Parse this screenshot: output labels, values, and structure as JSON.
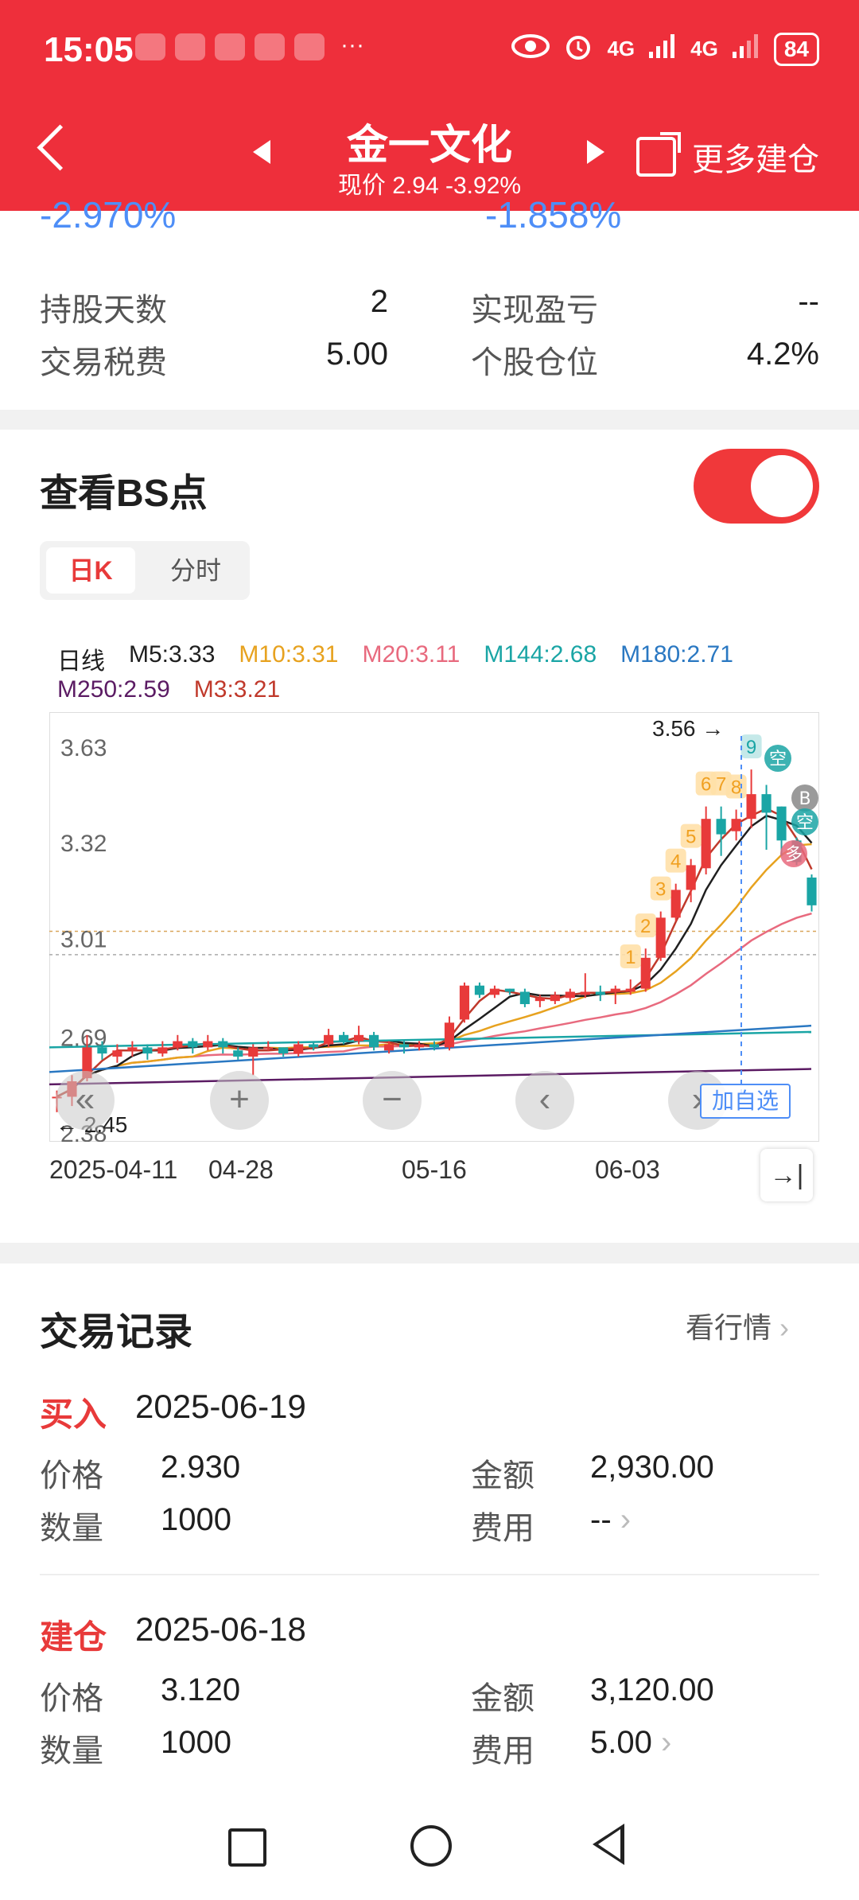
{
  "status_bar": {
    "time": "15:05",
    "battery": "84",
    "network1": "4G",
    "network2": "4G",
    "more": "···"
  },
  "header": {
    "title": "金一文化",
    "price_line": "现价 2.94 -3.92%",
    "more_label": "更多建仓"
  },
  "summary": {
    "cut_left": "-2.970%",
    "cut_right": "-1.858%",
    "rows": [
      {
        "l_label": "持股天数",
        "l_value": "2",
        "r_label": "实现盈亏",
        "r_value": "--"
      },
      {
        "l_label": "交易税费",
        "l_value": "5.00",
        "r_label": "个股仓位",
        "r_value": "4.2%"
      }
    ]
  },
  "bs": {
    "title": "查看BS点",
    "toggle_on": true,
    "tabs": [
      "日K",
      "分时"
    ],
    "selected_tab": "日K"
  },
  "chart_data": {
    "type": "candlestick",
    "period_label": "日线",
    "ma_legend": [
      {
        "text": "M5:3.33",
        "color": "#1f1f1f"
      },
      {
        "text": "M10:3.31",
        "color": "#e7a21f"
      },
      {
        "text": "M20:3.11",
        "color": "#e86a7e"
      },
      {
        "text": "M144:2.68",
        "color": "#1aa5a5"
      },
      {
        "text": "M180:2.71",
        "color": "#2a78c2"
      },
      {
        "text": "M250:2.59",
        "color": "#5b1b63"
      },
      {
        "text": "M3:3.21",
        "color": "#c0392b"
      }
    ],
    "y_ticks": [
      "3.63",
      "3.32",
      "3.01",
      "2.69",
      "2.38"
    ],
    "y_range": [
      2.38,
      3.72
    ],
    "x_labels": [
      "2025-04-11",
      "04-28",
      "05-16",
      "06-03"
    ],
    "high_label": "3.56",
    "low_label": "2.45",
    "nine_turn": [
      "1",
      "2",
      "3",
      "4",
      "5",
      "6",
      "7",
      "8",
      "9"
    ],
    "badges": [
      "空",
      "B",
      "空",
      "多"
    ],
    "candles": [
      [
        2.5,
        2.5,
        2.45,
        2.52
      ],
      [
        2.55,
        2.5,
        2.47,
        2.57
      ],
      [
        2.66,
        2.56,
        2.55,
        2.7
      ],
      [
        2.64,
        2.66,
        2.62,
        2.68
      ],
      [
        2.65,
        2.63,
        2.61,
        2.67
      ],
      [
        2.66,
        2.65,
        2.63,
        2.68
      ],
      [
        2.64,
        2.66,
        2.62,
        2.67
      ],
      [
        2.66,
        2.64,
        2.63,
        2.68
      ],
      [
        2.68,
        2.66,
        2.65,
        2.7
      ],
      [
        2.66,
        2.68,
        2.64,
        2.69
      ],
      [
        2.68,
        2.66,
        2.65,
        2.7
      ],
      [
        2.66,
        2.68,
        2.64,
        2.69
      ],
      [
        2.63,
        2.65,
        2.62,
        2.66
      ],
      [
        2.66,
        2.63,
        2.57,
        2.67
      ],
      [
        2.66,
        2.66,
        2.65,
        2.68
      ],
      [
        2.64,
        2.66,
        2.63,
        2.66
      ],
      [
        2.67,
        2.64,
        2.63,
        2.68
      ],
      [
        2.66,
        2.67,
        2.65,
        2.68
      ],
      [
        2.7,
        2.67,
        2.66,
        2.72
      ],
      [
        2.68,
        2.7,
        2.67,
        2.71
      ],
      [
        2.7,
        2.68,
        2.67,
        2.73
      ],
      [
        2.66,
        2.7,
        2.65,
        2.71
      ],
      [
        2.67,
        2.65,
        2.64,
        2.68
      ],
      [
        2.66,
        2.67,
        2.64,
        2.68
      ],
      [
        2.67,
        2.66,
        2.65,
        2.68
      ],
      [
        2.66,
        2.67,
        2.65,
        2.68
      ],
      [
        2.74,
        2.66,
        2.65,
        2.76
      ],
      [
        2.86,
        2.75,
        2.74,
        2.87
      ],
      [
        2.83,
        2.86,
        2.82,
        2.87
      ],
      [
        2.85,
        2.83,
        2.82,
        2.86
      ],
      [
        2.84,
        2.85,
        2.83,
        2.85
      ],
      [
        2.8,
        2.84,
        2.79,
        2.85
      ],
      [
        2.82,
        2.81,
        2.79,
        2.83
      ],
      [
        2.83,
        2.81,
        2.8,
        2.84
      ],
      [
        2.84,
        2.82,
        2.81,
        2.85
      ],
      [
        2.84,
        2.83,
        2.82,
        2.9
      ],
      [
        2.83,
        2.84,
        2.81,
        2.86
      ],
      [
        2.85,
        2.84,
        2.8,
        2.86
      ],
      [
        2.85,
        2.84,
        2.83,
        2.88
      ],
      [
        2.95,
        2.85,
        2.84,
        2.98
      ],
      [
        3.08,
        2.95,
        2.94,
        3.1
      ],
      [
        3.17,
        3.08,
        3.07,
        3.19
      ],
      [
        3.25,
        3.17,
        3.13,
        3.27
      ],
      [
        3.4,
        3.24,
        3.22,
        3.44
      ],
      [
        3.35,
        3.4,
        3.28,
        3.44
      ],
      [
        3.4,
        3.36,
        3.33,
        3.43
      ],
      [
        3.48,
        3.4,
        3.37,
        3.56
      ],
      [
        3.42,
        3.48,
        3.3,
        3.51
      ],
      [
        3.33,
        3.44,
        3.28,
        3.44
      ],
      [
        3.26,
        3.33,
        3.25,
        3.34
      ],
      [
        3.12,
        3.21,
        3.1,
        3.22
      ]
    ],
    "up_color": "#e83a3a",
    "down_color": "#1aa5a5"
  },
  "controls": {
    "add_watch": "加自选",
    "goto_end": "→|"
  },
  "records": {
    "title": "交易记录",
    "link": "看行情",
    "items": [
      {
        "type": "买入",
        "date": "2025-06-19",
        "price_label": "价格",
        "price": "2.930",
        "qty_label": "数量",
        "qty": "1000",
        "amount_label": "金额",
        "amount": "2,930.00",
        "fee_label": "费用",
        "fee": "--"
      },
      {
        "type": "建仓",
        "date": "2025-06-18",
        "price_label": "价格",
        "price": "3.120",
        "qty_label": "数量",
        "qty": "1000",
        "amount_label": "金额",
        "amount": "3,120.00",
        "fee_label": "费用",
        "fee": "5.00"
      }
    ]
  }
}
